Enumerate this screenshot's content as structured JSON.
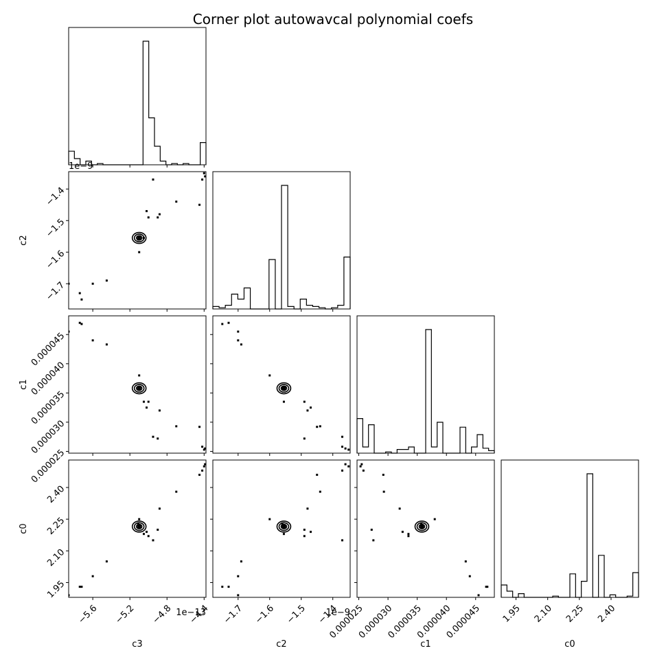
{
  "figure": {
    "title": "Corner plot autowavcal polynomial coefs"
  },
  "chart_data": {
    "type": "corner",
    "title": "Corner plot autowavcal polynomial coefs",
    "parameters": [
      "c3",
      "c2",
      "c1",
      "c0"
    ],
    "axis_labels": {
      "c3": "c3",
      "c2": "c2",
      "c1": "c1",
      "c0": "c0"
    },
    "offset_text": {
      "c3": "1e−13",
      "c2": "1e−9"
    },
    "ranges": {
      "c3": [
        -5.86,
        -4.38
      ],
      "c2": [
        -1.78,
        -1.345
      ],
      "c1": [
        2.47e-05,
        4.82e-05
      ],
      "c0": [
        1.88,
        2.53
      ]
    },
    "ticks": {
      "c3": {
        "values": [
          -5.6,
          -5.2,
          -4.8,
          -4.4
        ],
        "labels": [
          "−5.6",
          "−5.2",
          "−4.8",
          "−4.4"
        ]
      },
      "c2": {
        "values": [
          -1.7,
          -1.6,
          -1.5,
          -1.4
        ],
        "labels": [
          "−1.7",
          "−1.6",
          "−1.5",
          "−1.4"
        ]
      },
      "c1": {
        "values": [
          2.5e-05,
          3e-05,
          3.5e-05,
          4e-05,
          4.5e-05
        ],
        "labels": [
          "0.000025",
          "0.000030",
          "0.000035",
          "0.000040",
          "0.000045"
        ]
      },
      "c0": {
        "values": [
          1.95,
          2.1,
          2.25,
          2.4
        ],
        "labels": [
          "1.95",
          "2.10",
          "2.25",
          "2.40"
        ]
      }
    },
    "histograms": {
      "c3": {
        "counts": [
          11,
          5,
          0,
          3,
          0,
          1,
          0,
          0,
          0,
          0,
          0,
          0,
          0,
          100,
          38,
          15,
          3,
          0,
          1,
          0,
          1,
          0,
          0,
          18
        ]
      },
      "c2": {
        "counts": [
          2,
          1,
          3,
          12,
          8,
          17,
          0,
          0,
          0,
          40,
          0,
          100,
          2,
          0,
          8,
          3,
          2,
          1,
          0,
          1,
          3,
          42
        ]
      },
      "c1": {
        "counts": [
          28,
          5,
          23,
          0,
          0,
          1,
          0,
          3,
          3,
          5,
          0,
          0,
          100,
          5,
          25,
          0,
          0,
          0,
          21,
          0,
          5,
          15,
          4,
          2
        ]
      },
      "c0": {
        "counts": [
          10,
          5,
          0,
          3,
          0,
          0,
          0,
          0,
          0,
          1,
          0,
          0,
          19,
          0,
          13,
          100,
          0,
          34,
          0,
          2,
          0,
          0,
          1,
          20
        ]
      }
    },
    "points": [
      [
        -5.86,
        -1.7,
        4.55e-05,
        1.89
      ],
      [
        -5.74,
        -1.73,
        4.7e-05,
        1.93
      ],
      [
        -5.72,
        -1.75,
        4.68e-05,
        1.93
      ],
      [
        -5.6,
        -1.7,
        4.4e-05,
        1.98
      ],
      [
        -5.45,
        -1.69,
        4.33e-05,
        2.05
      ],
      [
        -5.1,
        -1.555,
        3.58e-05,
        2.21
      ],
      [
        -5.1,
        -1.56,
        3.58e-05,
        2.22
      ],
      [
        -5.09,
        -1.55,
        3.6e-05,
        2.21
      ],
      [
        -5.11,
        -1.56,
        3.57e-05,
        2.23
      ],
      [
        -5.1,
        -1.6,
        3.8e-05,
        2.25
      ],
      [
        -5.05,
        -1.555,
        3.35e-05,
        2.18
      ],
      [
        -5.02,
        -1.47,
        3.25e-05,
        2.19
      ],
      [
        -5.0,
        -1.49,
        3.35e-05,
        2.17
      ],
      [
        -4.95,
        -1.37,
        2.75e-05,
        2.15
      ],
      [
        -4.9,
        -1.49,
        2.72e-05,
        2.2
      ],
      [
        -4.88,
        -1.48,
        3.2e-05,
        2.3
      ],
      [
        -4.7,
        -1.44,
        2.93e-05,
        2.38
      ],
      [
        -4.45,
        -1.45,
        2.92e-05,
        2.46
      ],
      [
        -4.42,
        -1.37,
        2.58e-05,
        2.48
      ],
      [
        -4.4,
        -1.35,
        2.53e-05,
        2.5
      ],
      [
        -4.39,
        -1.36,
        2.55e-05,
        2.51
      ]
    ],
    "contour_centers": [
      {
        "x": "c3",
        "y": "c2",
        "point": [
          -5.1,
          -1.555
        ]
      },
      {
        "x": "c3",
        "y": "c1",
        "point": [
          -5.1,
          3.58e-05
        ]
      },
      {
        "x": "c2",
        "y": "c1",
        "point": [
          -1.555,
          3.58e-05
        ]
      },
      {
        "x": "c3",
        "y": "c0",
        "point": [
          -5.1,
          2.215
        ]
      },
      {
        "x": "c2",
        "y": "c0",
        "point": [
          -1.555,
          2.215
        ]
      },
      {
        "x": "c1",
        "y": "c0",
        "point": [
          3.58e-05,
          2.215
        ]
      }
    ]
  }
}
